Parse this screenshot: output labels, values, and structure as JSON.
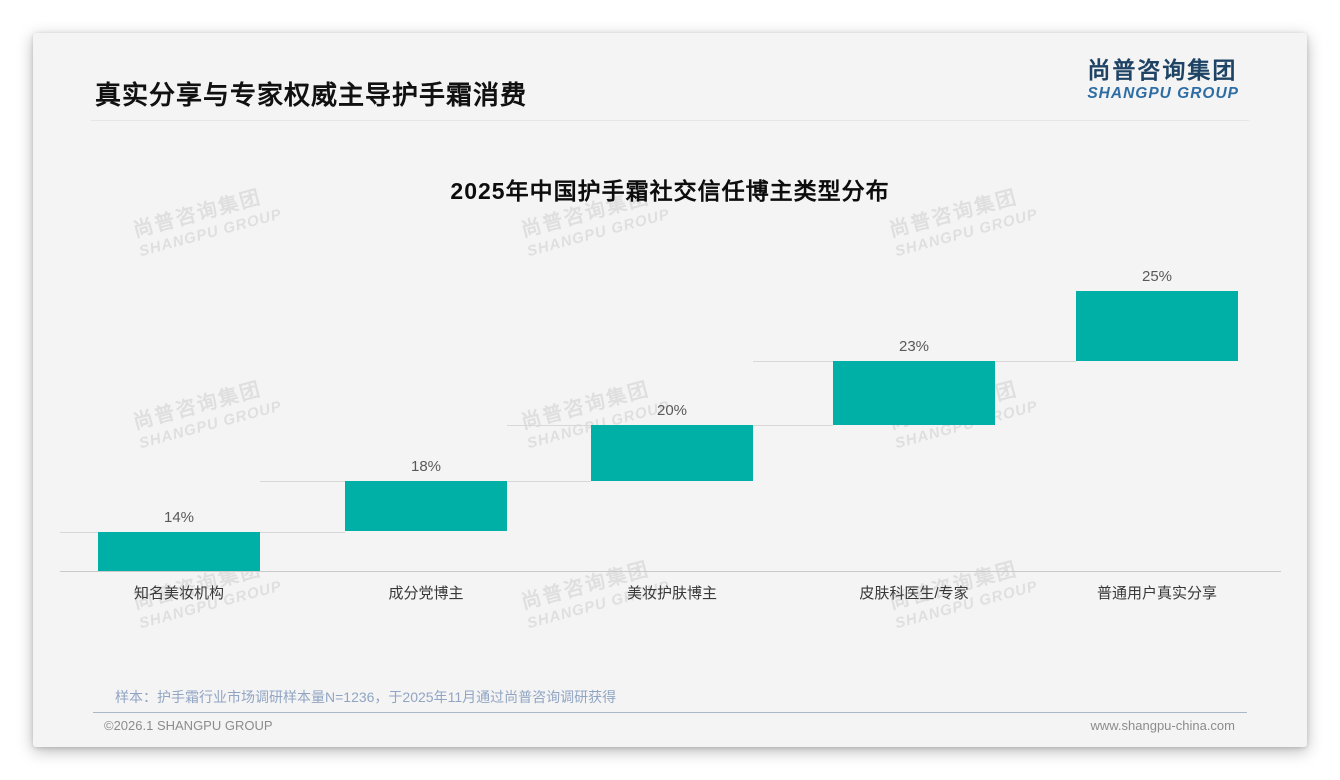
{
  "page": {
    "slide_title": "真实分享与专家权威主导护手霜消费",
    "logo": {
      "cn": "尚普咨询集团",
      "en": "SHANGPU GROUP"
    },
    "watermark": {
      "line1": "尚普咨询集团",
      "line2": "SHANGPU GROUP"
    },
    "footer": {
      "sample_note": "样本：护手霜行业市场调研样本量N=1236，于2025年11月通过尚普咨询调研获得",
      "copyright": "©2026.1 SHANGPU GROUP",
      "website": "www.shangpu-china.com"
    }
  },
  "chart_data": {
    "type": "bar",
    "subtype": "waterfall-staircase",
    "title": "2025年中国护手霜社交信任博主类型分布",
    "categories": [
      "知名美妆机构",
      "成分党博主",
      "美妆护肤博主",
      "皮肤科医生/专家",
      "普通用户真实分享"
    ],
    "values": [
      14,
      18,
      20,
      23,
      25
    ],
    "value_labels": [
      "14%",
      "18%",
      "20%",
      "23%",
      "25%"
    ],
    "cumulative": [
      14,
      32,
      52,
      75,
      100
    ],
    "bar_color": "#00B0A6",
    "connector_color": "#d8d8d8",
    "xlabel": "",
    "ylabel": "",
    "ylim": [
      0,
      100
    ],
    "grid": false,
    "legend": false
  }
}
